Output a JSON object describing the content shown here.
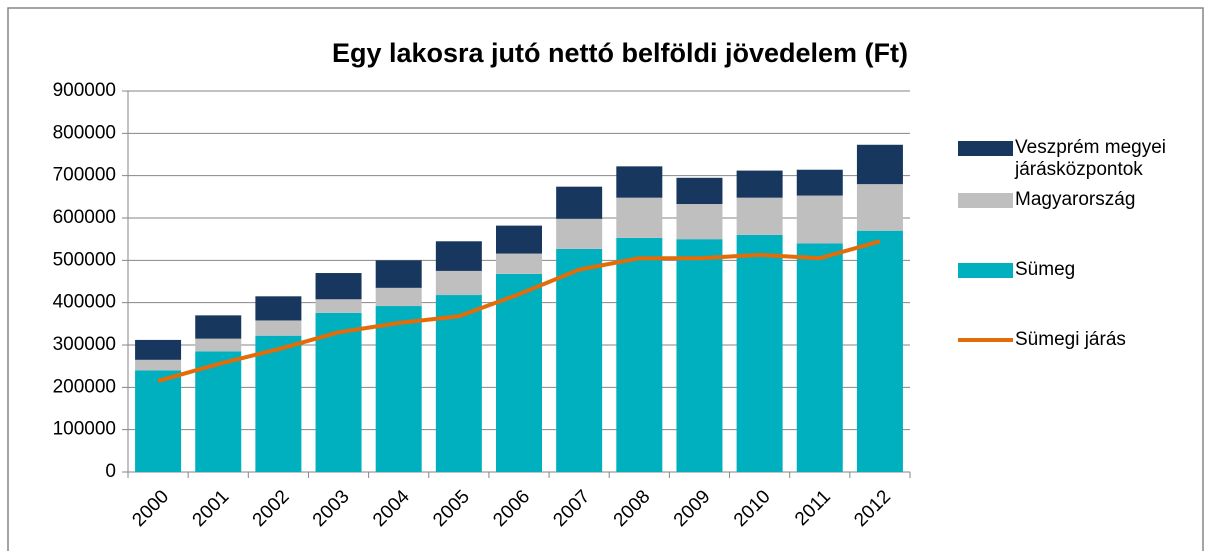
{
  "chart_data": {
    "type": "bar",
    "stacked": true,
    "title": "Egy lakosra jutó nettó belföldi jövedelem (Ft)",
    "categories": [
      "2000",
      "2001",
      "2002",
      "2003",
      "2004",
      "2005",
      "2006",
      "2007",
      "2008",
      "2009",
      "2010",
      "2011",
      "2012"
    ],
    "series": [
      {
        "name": "Sümeg",
        "type": "bar",
        "color": "#00b0bf",
        "values": [
          240000,
          285000,
          322000,
          376000,
          392000,
          418000,
          468000,
          527000,
          553000,
          550000,
          560000,
          540000,
          570000
        ]
      },
      {
        "name": "Magyarország",
        "type": "bar",
        "color": "#bfbfbf",
        "values": [
          25000,
          30000,
          36000,
          32000,
          43000,
          57000,
          48000,
          71000,
          95000,
          83000,
          88000,
          113000,
          110000
        ]
      },
      {
        "name": "Veszprém megyei járásközpontok",
        "type": "bar",
        "color": "#17375e",
        "values": [
          47000,
          55000,
          57000,
          62000,
          65000,
          70000,
          66000,
          76000,
          74000,
          62000,
          64000,
          61000,
          93000
        ]
      },
      {
        "name": "Sümegi járás",
        "type": "line",
        "color": "#e36c09",
        "values": [
          215000,
          255000,
          290000,
          330000,
          352000,
          368000,
          420000,
          478000,
          505000,
          505000,
          513000,
          505000,
          545000
        ]
      }
    ],
    "ylim": [
      0,
      900000
    ],
    "yticks": [
      0,
      100000,
      200000,
      300000,
      400000,
      500000,
      600000,
      700000,
      800000,
      900000
    ],
    "grid": true,
    "legend": "right"
  }
}
